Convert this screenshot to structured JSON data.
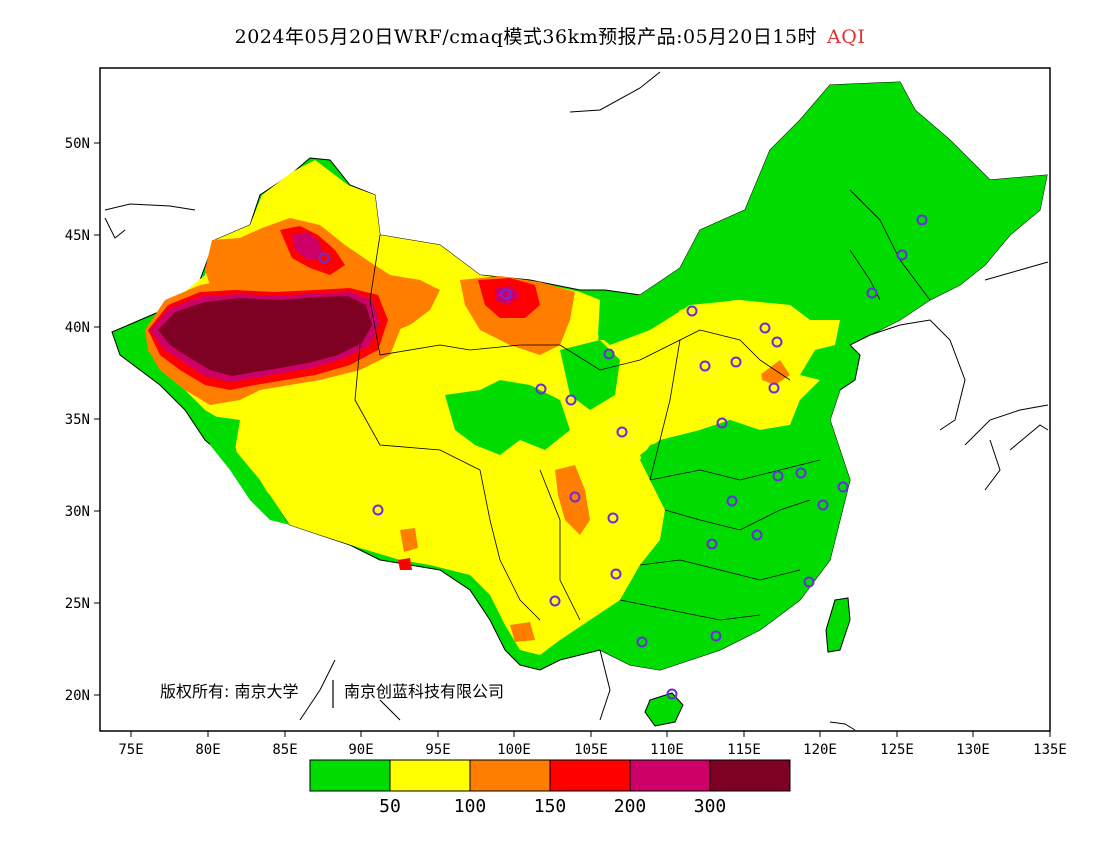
{
  "title": {
    "main": "2024年05月20日WRF/cmaq模式36km预报产品:05月20日15时",
    "variable": "AQI",
    "variable_color": "#e03030"
  },
  "map": {
    "lat_ticks": [
      "50N",
      "45N",
      "40N",
      "35N",
      "30N",
      "25N",
      "20N"
    ],
    "lon_ticks": [
      "75E",
      "80E",
      "85E",
      "90E",
      "95E",
      "100E",
      "105E",
      "110E",
      "115E",
      "120E",
      "125E",
      "130E",
      "135E"
    ],
    "credit": "版权所有: 南京大学",
    "credit2": "南京创蓝科技有限公司",
    "aqi_levels_by_region": [
      {
        "region": "Tarim basin",
        "level": ">300"
      },
      {
        "region": "Junggar / northern Xinjiang",
        "level": "100-200"
      },
      {
        "region": "Inner Mongolia west",
        "level": "150-200"
      },
      {
        "region": "Tibet / Qinghai",
        "level": "50-100"
      },
      {
        "region": "North China plain",
        "level": "50-150"
      },
      {
        "region": "Northeast China",
        "level": "0-50"
      },
      {
        "region": "South / East China",
        "level": "0-50"
      }
    ]
  },
  "colorbar": {
    "colors": [
      "#00dc00",
      "#ffff00",
      "#ff7e00",
      "#ff0000",
      "#cc0066",
      "#7e0023"
    ],
    "labels": [
      "50",
      "100",
      "150",
      "200",
      "300"
    ]
  }
}
